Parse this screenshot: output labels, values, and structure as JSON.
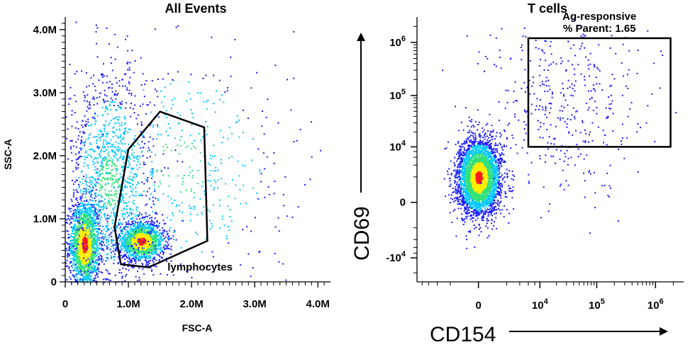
{
  "colors": {
    "density_low": "#1a1aff",
    "density_mid1": "#00c8ff",
    "density_mid2": "#33e07a",
    "density_mid3": "#ffee00",
    "density_high": "#ff1a1a",
    "gate_stroke": "#000000"
  },
  "chart_data": [
    {
      "type": "scatter",
      "subtype": "flow-cytometry-density-plot",
      "title": "All Events",
      "xlabel": "FSC-A",
      "ylabel": "SSC-A",
      "xlim": [
        0,
        4200000
      ],
      "ylim": [
        0,
        4200000
      ],
      "x_scale": "linear",
      "y_scale": "linear",
      "x_ticks": [
        {
          "value": 0,
          "label": "0"
        },
        {
          "value": 1000000,
          "label": "1.0M"
        },
        {
          "value": 2000000,
          "label": "2.0M"
        },
        {
          "value": 3000000,
          "label": "3.0M"
        },
        {
          "value": 4000000,
          "label": "4.0M"
        }
      ],
      "y_ticks": [
        {
          "value": 0,
          "label": "0"
        },
        {
          "value": 1000000,
          "label": "1.0M"
        },
        {
          "value": 2000000,
          "label": "2.0M"
        },
        {
          "value": 3000000,
          "label": "3.0M"
        },
        {
          "value": 4000000,
          "label": "4.0M"
        }
      ],
      "populations": [
        {
          "center": [
            300000,
            600000
          ],
          "spread": [
            120000,
            350000
          ],
          "weight": 0.35
        },
        {
          "center": [
            1200000,
            650000
          ],
          "spread": [
            180000,
            150000
          ],
          "weight": 0.3
        },
        {
          "center": [
            700000,
            1600000
          ],
          "spread": [
            350000,
            900000
          ],
          "weight": 0.25
        },
        {
          "center": [
            1800000,
            1800000
          ],
          "spread": [
            900000,
            1000000
          ],
          "weight": 0.1
        }
      ],
      "gates": [
        {
          "label": "lymphocytes",
          "shape": "polygon",
          "vertices": [
            [
              880000,
              280000
            ],
            [
              1320000,
              230000
            ],
            [
              2250000,
              650000
            ],
            [
              2200000,
              2450000
            ],
            [
              1500000,
              2700000
            ],
            [
              1000000,
              2100000
            ],
            [
              780000,
              870000
            ]
          ]
        }
      ]
    },
    {
      "type": "scatter",
      "subtype": "flow-cytometry-density-plot",
      "title": "T cells",
      "xlabel": "CD154",
      "ylabel": "CD69",
      "x_scale": "biexponential",
      "y_scale": "biexponential",
      "xlim": [
        -10000,
        3000000
      ],
      "ylim": [
        -30000,
        3000000
      ],
      "x_ticks": [
        {
          "value": 0,
          "label": "0"
        },
        {
          "value": 10000,
          "label": "10^4"
        },
        {
          "value": 100000,
          "label": "10^5"
        },
        {
          "value": 1000000,
          "label": "10^6"
        }
      ],
      "y_ticks": [
        {
          "value": -10000,
          "label": "-10^4"
        },
        {
          "value": 0,
          "label": "0"
        },
        {
          "value": 10000,
          "label": "10^4"
        },
        {
          "value": 100000,
          "label": "10^5"
        },
        {
          "value": 1000000,
          "label": "10^6"
        }
      ],
      "populations": [
        {
          "center": [
            0,
            2000
          ],
          "spread": "tight",
          "weight": 0.9
        },
        {
          "center": [
            15000,
            30000
          ],
          "spread": "diffuse",
          "weight": 0.1
        }
      ],
      "gates": [
        {
          "label": "Ag-responsive",
          "shape": "rectangle",
          "x_range": [
            6000,
            1800000
          ],
          "y_range": [
            10000,
            1200000
          ],
          "stat_label": "% Parent: 1.65",
          "percent_parent": 1.65
        }
      ]
    }
  ]
}
